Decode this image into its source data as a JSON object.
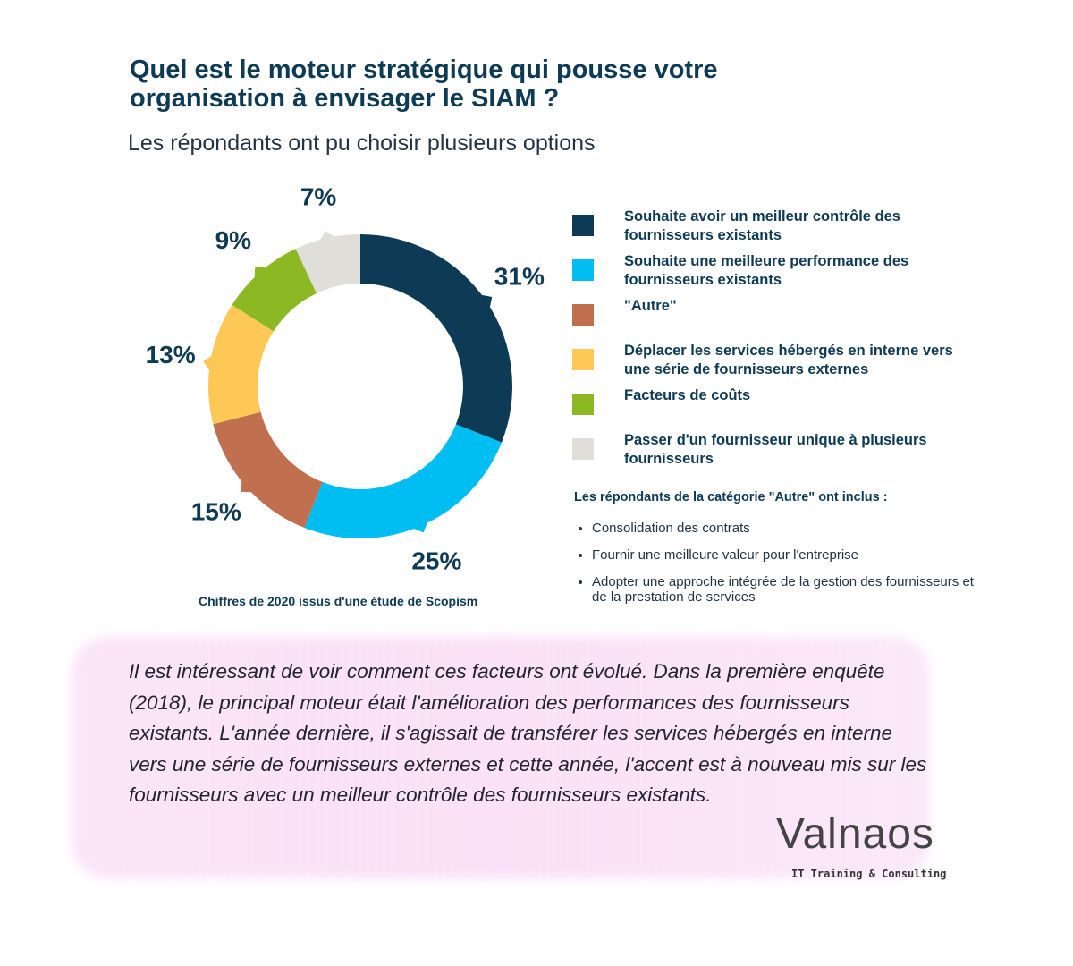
{
  "chart_data": {
    "type": "pie",
    "title": "Quel est le moteur stratégique qui pousse votre organisation à envisager le SIAM ?",
    "subtitle": "Les répondants ont pu choisir plusieurs options",
    "categories": [
      "Souhaite avoir un meilleur contrôle des fournisseurs existants",
      "Souhaite une meilleure performance des fournisseurs existants",
      "\"Autre\"",
      "Déplacer les services hébergés en interne vers une série de fournisseurs externes",
      "Facteurs de coûts",
      "Passer d'un fournisseur unique à plusieurs fournisseurs"
    ],
    "values": [
      31,
      25,
      15,
      13,
      9,
      7
    ],
    "value_labels": [
      "31%",
      "25%",
      "15%",
      "13%",
      "9%",
      "7%"
    ],
    "colors": [
      "#0d3a55",
      "#00bdf2",
      "#c0704e",
      "#fdc855",
      "#8cb824",
      "#e0ded8"
    ],
    "donut": true,
    "source": "Chiffres de 2020 issus d'une étude de Scopism"
  },
  "other": {
    "heading": "Les répondants de la catégorie \"Autre\" ont inclus :",
    "items": [
      "Consolidation des contrats",
      "Fournir une meilleure valeur pour l'entreprise",
      "Adopter une approche intégrée de la gestion des fournisseurs et de la prestation de services"
    ]
  },
  "comment": "Il est intéressant de voir comment ces facteurs ont évolué. Dans la première enquête (2018), le principal moteur était l'amélioration des performances des fournisseurs existants. L'année dernière, il s'agissait de transférer les services hébergés en interne vers une série de fournisseurs externes et cette année, l'accent est à nouveau mis sur les fournisseurs avec un meilleur contrôle des fournisseurs existants.",
  "logo": {
    "name": "Valnaos",
    "tagline": "IT Training & Consulting"
  }
}
